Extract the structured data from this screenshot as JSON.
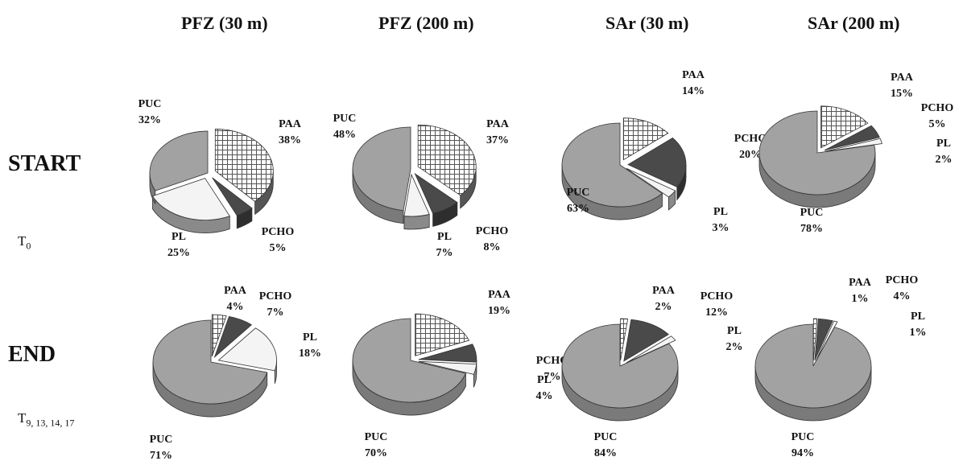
{
  "columns": [
    "PFZ (30 m)",
    "PFZ (200 m)",
    "SAr (30 m)",
    "SAr (200 m)"
  ],
  "rows": [
    {
      "label": "START",
      "time_main": "T",
      "time_sub": "0"
    },
    {
      "label": "END",
      "time_main": "T",
      "time_sub": "9, 13, 14, 17"
    }
  ],
  "colors": {
    "PAA": "#ffffff",
    "PCHO": "#4a4a4a",
    "PL": "#f4f4f4",
    "PUC": "#a2a2a2",
    "grid": "#555555",
    "edge": "#333333"
  },
  "chart_data": [
    {
      "type": "pie",
      "panel": "PFZ (30 m) START",
      "labels": [
        "PAA",
        "PCHO",
        "PL",
        "PUC"
      ],
      "values": [
        38,
        5,
        25,
        32
      ],
      "value_labels": [
        "38%",
        "5%",
        "25%",
        "32%"
      ]
    },
    {
      "type": "pie",
      "panel": "PFZ (200 m) START",
      "labels": [
        "PAA",
        "PCHO",
        "PL",
        "PUC"
      ],
      "values": [
        37,
        8,
        7,
        48
      ],
      "value_labels": [
        "37%",
        "8%",
        "7%",
        "48%"
      ]
    },
    {
      "type": "pie",
      "panel": "SAr (30 m) START",
      "labels": [
        "PAA",
        "PCHO",
        "PL",
        "PUC"
      ],
      "values": [
        14,
        20,
        3,
        63
      ],
      "value_labels": [
        "14%",
        "20%",
        "3%",
        "63%"
      ]
    },
    {
      "type": "pie",
      "panel": "SAr (200 m) START",
      "labels": [
        "PAA",
        "PCHO",
        "PL",
        "PUC"
      ],
      "values": [
        15,
        5,
        2,
        78
      ],
      "value_labels": [
        "15%",
        "5%",
        "2%",
        "78%"
      ]
    },
    {
      "type": "pie",
      "panel": "PFZ (30 m) END",
      "labels": [
        "PAA",
        "PCHO",
        "PL",
        "PUC"
      ],
      "values": [
        4,
        7,
        18,
        71
      ],
      "value_labels": [
        "4%",
        "7%",
        "18%",
        "71%"
      ]
    },
    {
      "type": "pie",
      "panel": "PFZ (200 m) END",
      "labels": [
        "PAA",
        "PCHO",
        "PL",
        "PUC"
      ],
      "values": [
        19,
        7,
        4,
        70
      ],
      "value_labels": [
        "19%",
        "7%",
        "4%",
        "70%"
      ]
    },
    {
      "type": "pie",
      "panel": "SAr (30 m) END",
      "labels": [
        "PAA",
        "PCHO",
        "PL",
        "PUC"
      ],
      "values": [
        2,
        12,
        2,
        84
      ],
      "value_labels": [
        "2%",
        "12%",
        "2%",
        "84%"
      ]
    },
    {
      "type": "pie",
      "panel": "SAr (200 m) END",
      "labels": [
        "PAA",
        "PCHO",
        "PL",
        "PUC"
      ],
      "values": [
        1,
        4,
        1,
        94
      ],
      "value_labels": [
        "1%",
        "4%",
        "1%",
        "94%"
      ]
    }
  ]
}
